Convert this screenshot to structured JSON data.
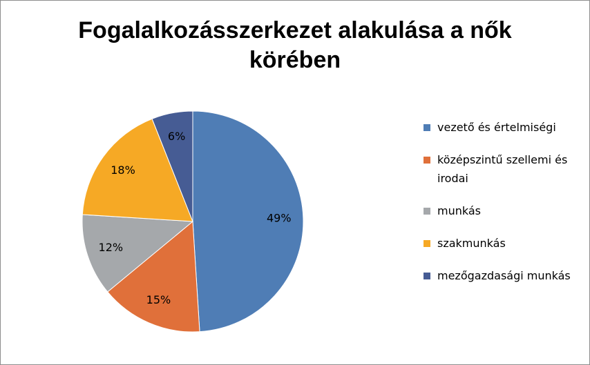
{
  "chart_data": {
    "type": "pie",
    "title": "Fogalalkozásszerkezet alakulása a nők körében",
    "categories": [
      "vezető és értelmiségi",
      "középszintű szellemi és irodai",
      "munkás",
      "szakmunkás",
      "mezőgazdasági munkás"
    ],
    "values": [
      49,
      15,
      12,
      18,
      6
    ],
    "value_labels": [
      "49%",
      "15%",
      "12%",
      "18%",
      "6%"
    ],
    "colors": [
      "#4f7db5",
      "#e0703a",
      "#a5a8ab",
      "#f6a925",
      "#465c94"
    ]
  }
}
